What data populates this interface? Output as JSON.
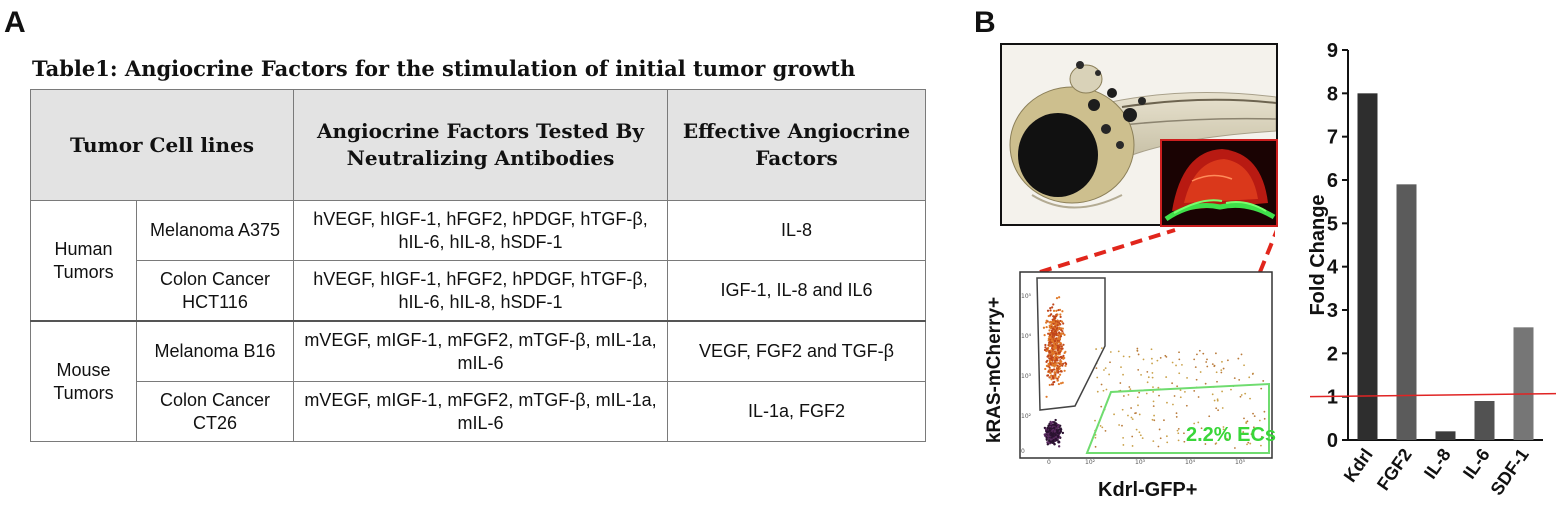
{
  "panels": {
    "a": "A",
    "b": "B"
  },
  "table": {
    "title": "Table1: Angiocrine Factors for the stimulation of initial tumor growth",
    "headers": [
      "Tumor Cell lines",
      "Angiocrine Factors Tested By Neutralizing Antibodies",
      "Effective Angiocrine Factors"
    ],
    "groups": [
      {
        "name": "Human Tumors",
        "rows": [
          {
            "cell_line": "Melanoma A375",
            "tested": "hVEGF, hIGF-1, hFGF2, hPDGF, hTGF-β, hIL-6, hIL-8, hSDF-1",
            "effective": "IL-8"
          },
          {
            "cell_line": "Colon Cancer HCT116",
            "tested": "hVEGF, hIGF-1, hFGF2, hPDGF, hTGF-β, hIL-6, hIL-8, hSDF-1",
            "effective": "IGF-1, IL-8 and IL6"
          }
        ]
      },
      {
        "name": "Mouse Tumors",
        "rows": [
          {
            "cell_line": "Melanoma B16",
            "tested": "mVEGF, mIGF-1, mFGF2, mTGF-β, mIL-1a, mIL-6",
            "effective": "VEGF, FGF2 and TGF-β"
          },
          {
            "cell_line": "Colon Cancer CT26",
            "tested": "mVEGF, mIGF-1, mFGF2, mTGF-β, mIL-1a, mIL-6",
            "effective": "IL-1a, FGF2"
          }
        ]
      }
    ]
  },
  "flow": {
    "ylabel": "kRAS-mCherry+",
    "xlabel": "Kdrl-GFP+",
    "gate_label": "2.2% ECs"
  },
  "chart_data": {
    "type": "bar",
    "categories": [
      "Kdrl",
      "FGF2",
      "IL-8",
      "IL-6",
      "SDF-1"
    ],
    "values": [
      8.0,
      5.9,
      0.2,
      0.9,
      2.6
    ],
    "bar_colors": [
      "#2e2e2e",
      "#5b5b5b",
      "#3c3c3c",
      "#525252",
      "#767676"
    ],
    "ylabel": "Fold Change",
    "ylim": [
      0,
      9
    ],
    "yticks": [
      0,
      1,
      2,
      3,
      4,
      5,
      6,
      7,
      8,
      9
    ],
    "reference_line": {
      "value": 1,
      "color": "#e02424"
    },
    "grid": false
  }
}
